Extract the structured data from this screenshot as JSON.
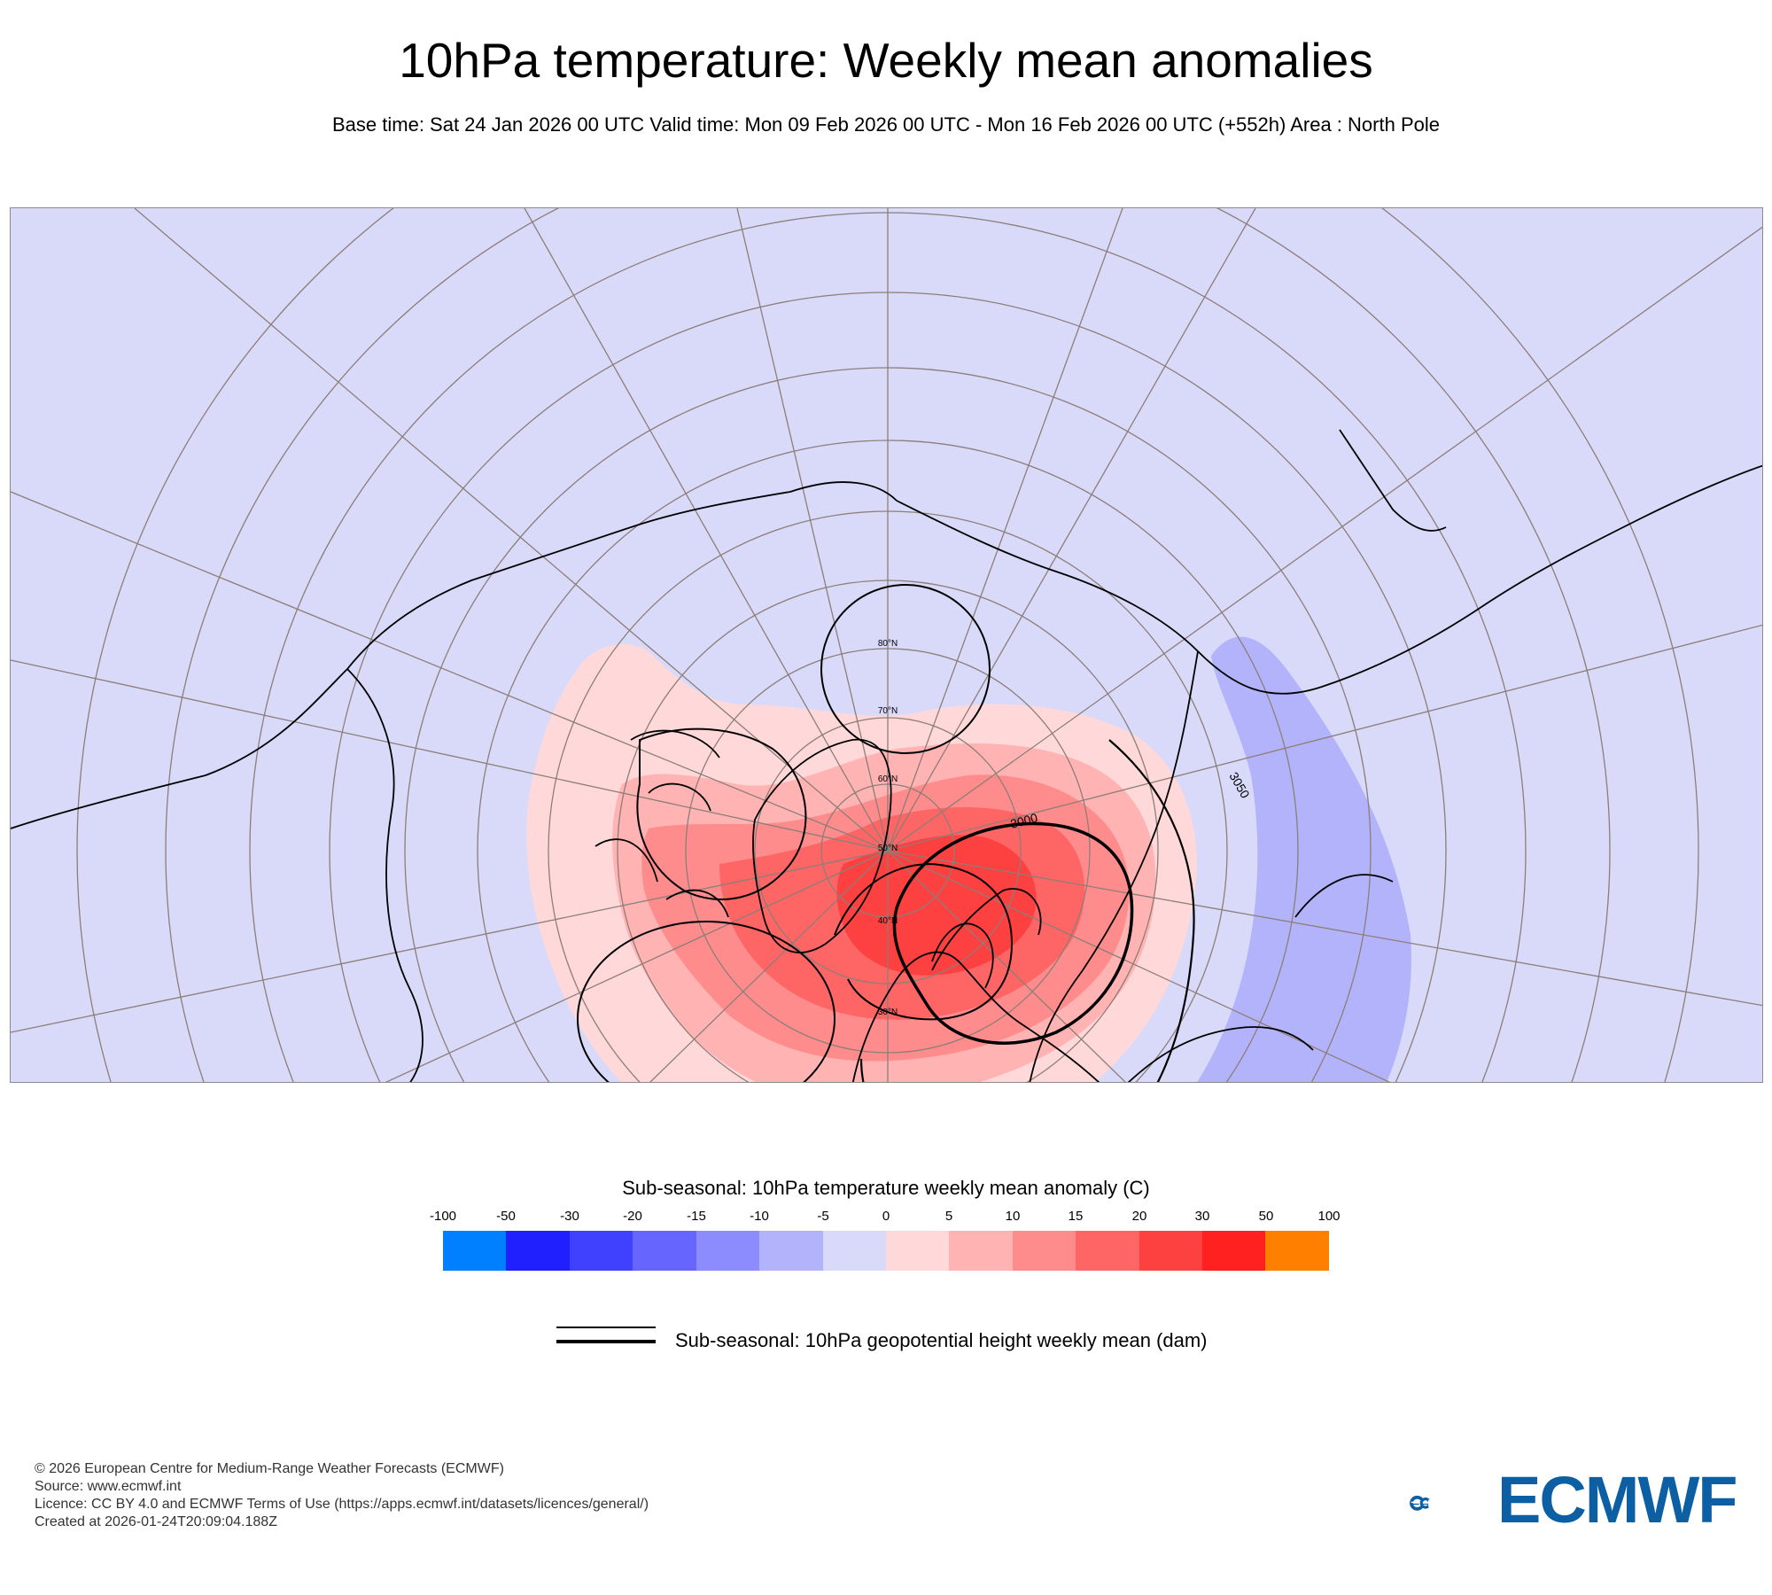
{
  "header": {
    "title": "10hPa temperature: Weekly mean anomalies",
    "subtitle": "Base time: Sat 24 Jan 2026 00 UTC Valid time: Mon 09 Feb 2026 00 UTC - Mon 16 Feb 2026 00 UTC (+552h) Area : North Pole"
  },
  "map": {
    "projection": "polar-stereographic",
    "area": "North Pole",
    "latitude_labels": [
      "80°N",
      "70°N",
      "60°N",
      "50°N",
      "40°N",
      "30°N"
    ],
    "contour_labels": [
      "3000",
      "3050"
    ],
    "colors": {
      "background": "#d9d9fa",
      "neg5": "#b3b3fb",
      "pos5": "#ffd9d9",
      "pos10": "#ffb3b3",
      "pos15": "#fe8c8c",
      "pos20": "#fe6666",
      "pos30": "#fd4040",
      "coast": "#000000",
      "grid": "#8c7e78"
    }
  },
  "legend": {
    "title": "Sub-seasonal: 10hPa temperature weekly mean anomaly (C)",
    "ticks": [
      "-100",
      "-50",
      "-30",
      "-20",
      "-15",
      "-10",
      "-5",
      "0",
      "5",
      "10",
      "15",
      "20",
      "30",
      "50",
      "100"
    ],
    "colors": [
      "#0080ff",
      "#2020ff",
      "#4040ff",
      "#6666ff",
      "#8c8cff",
      "#b3b3fb",
      "#d9d9fa",
      "#ffd9d9",
      "#ffb3b3",
      "#fe8c8c",
      "#fe6666",
      "#fd4040",
      "#ff2020",
      "#ff8000"
    ],
    "contour_label": "Sub-seasonal: 10hPa geopotential height weekly mean (dam)"
  },
  "footer": {
    "lines": [
      "© 2026 European Centre for Medium-Range Weather Forecasts (ECMWF)",
      "Source: www.ecmwf.int",
      "Licence: CC BY 4.0 and ECMWF Terms of Use (https://apps.ecmwf.int/datasets/licences/general/)",
      "Created at 2026-01-24T20:09:04.188Z"
    ],
    "logo_text": "ECMWF",
    "logo_color": "#0d5fa3"
  }
}
